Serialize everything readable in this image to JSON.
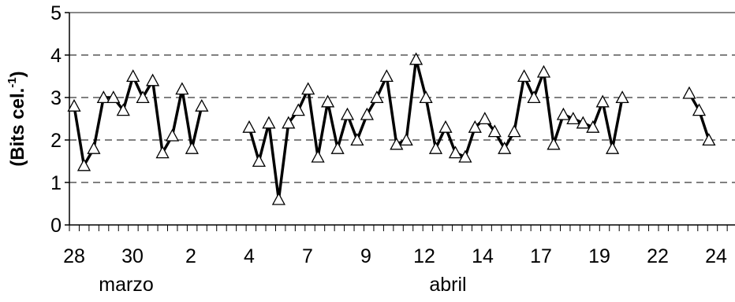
{
  "chart_data": {
    "type": "line",
    "ylabel": "(Bits cel.",
    "ylabel_sup": "-1",
    "ylabel_close": ")",
    "ylim": [
      0,
      5
    ],
    "y_ticks": [
      "0",
      "1",
      "2",
      "3",
      "4",
      "5"
    ],
    "grid": "horizontal dashed",
    "x_tick_labels": [
      "28",
      "30",
      "2",
      "4",
      "7",
      "9",
      "12",
      "14",
      "17",
      "19",
      "22",
      "24"
    ],
    "month_labels": [
      "marzo",
      "abril"
    ],
    "marker": "open-triangle",
    "line_color": "#000000",
    "series": [
      {
        "segments": [
          [
            2.8,
            1.4,
            1.8,
            3.0,
            3.0,
            2.7,
            3.5,
            3.0,
            3.4,
            1.7,
            2.1,
            3.2,
            1.8,
            2.8
          ],
          [
            2.3,
            1.5,
            2.4,
            0.6,
            2.4,
            2.7,
            3.2,
            1.6,
            2.9,
            1.8,
            2.6,
            2.0,
            2.6,
            3.0,
            3.5,
            1.9,
            2.0,
            3.9,
            3.0,
            1.8,
            2.3,
            1.7,
            1.6,
            2.3,
            2.5,
            2.2,
            1.8,
            2.2,
            3.5,
            3.0,
            3.6,
            1.9,
            2.6,
            2.5,
            2.4,
            2.3,
            2.9,
            1.8,
            3.0
          ],
          [
            3.1,
            2.7,
            2.0
          ]
        ]
      }
    ]
  }
}
